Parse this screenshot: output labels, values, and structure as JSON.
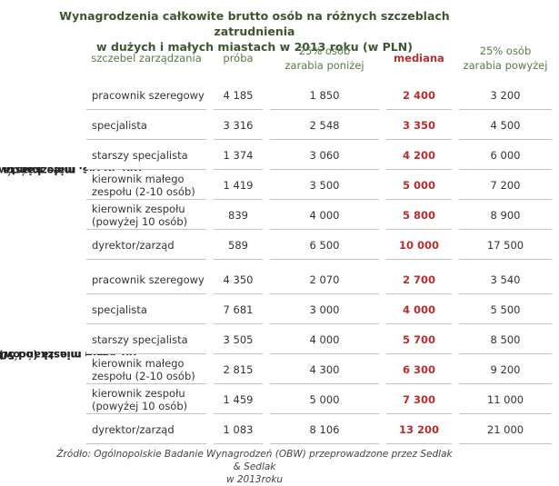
{
  "title_line1": "Wynagrodzenia całkowite brutto osób na różnych szczeblach zatrudnienia",
  "title_line2": "w dużych i małych miastach w 2013 roku (w PLN)",
  "headers": {
    "level": "szczebel zarządzania",
    "sample": "próba",
    "low_line1": "25% osób",
    "low_line2": "zarabia poniżej",
    "median": "mediana",
    "high_line1": "25% osób",
    "high_line2": "zarabia powyżej"
  },
  "groups": [
    {
      "label_line1": "małe miasta",
      "label_line2": "(do 50 tys. mieszkańców)",
      "rows": [
        {
          "level_line1": "pracownik szeregowy",
          "level_line2": "",
          "sample": "4 185",
          "low": "1 850",
          "median": "2 400",
          "high": "3 200"
        },
        {
          "level_line1": "specjalista",
          "level_line2": "",
          "sample": "3 316",
          "low": "2 548",
          "median": "3 350",
          "high": "4 500"
        },
        {
          "level_line1": "starszy specjalista",
          "level_line2": "",
          "sample": "1 374",
          "low": "3 060",
          "median": "4 200",
          "high": "6 000"
        },
        {
          "level_line1": "kierownik małego",
          "level_line2": "zespołu (2-10 osób)",
          "sample": "1 419",
          "low": "3 500",
          "median": "5 000",
          "high": "7 200"
        },
        {
          "level_line1": "kierownik zespołu",
          "level_line2": "(powyżej 10 osób)",
          "sample": "839",
          "low": "4 000",
          "median": "5 800",
          "high": "8 900"
        },
        {
          "level_line1": "dyrektor/zarząd",
          "level_line2": "",
          "sample": "589",
          "low": "6 500",
          "median": "10 000",
          "high": "17 500"
        }
      ]
    },
    {
      "label_line1": "duże miasta (od 500 tys.",
      "label_line2": "do 1 mln mieszkańców)",
      "rows": [
        {
          "level_line1": "pracownik szeregowy",
          "level_line2": "",
          "sample": "4 350",
          "low": "2 070",
          "median": "2 700",
          "high": "3 540"
        },
        {
          "level_line1": "specjalista",
          "level_line2": "",
          "sample": "7 681",
          "low": "3 000",
          "median": "4 000",
          "high": "5 500"
        },
        {
          "level_line1": "starszy specjalista",
          "level_line2": "",
          "sample": "3 505",
          "low": "4 000",
          "median": "5 700",
          "high": "8 500"
        },
        {
          "level_line1": "kierownik małego",
          "level_line2": "zespołu (2-10 osób)",
          "sample": "2 815",
          "low": "4 300",
          "median": "6 300",
          "high": "9 200"
        },
        {
          "level_line1": "kierownik zespołu",
          "level_line2": "(powyżej 10 osób)",
          "sample": "1 459",
          "low": "5 000",
          "median": "7 300",
          "high": "11 000"
        },
        {
          "level_line1": "dyrektor/zarząd",
          "level_line2": "",
          "sample": "1 083",
          "low": "8 106",
          "median": "13 200",
          "high": "21 000"
        }
      ]
    }
  ],
  "source_line1": "Źródło: Ogólnopolskie Badanie Wynagrodzeń (OBW) przeprowadzone przez Sedlak & Sedlak",
  "source_line2": "w 2013roku"
}
